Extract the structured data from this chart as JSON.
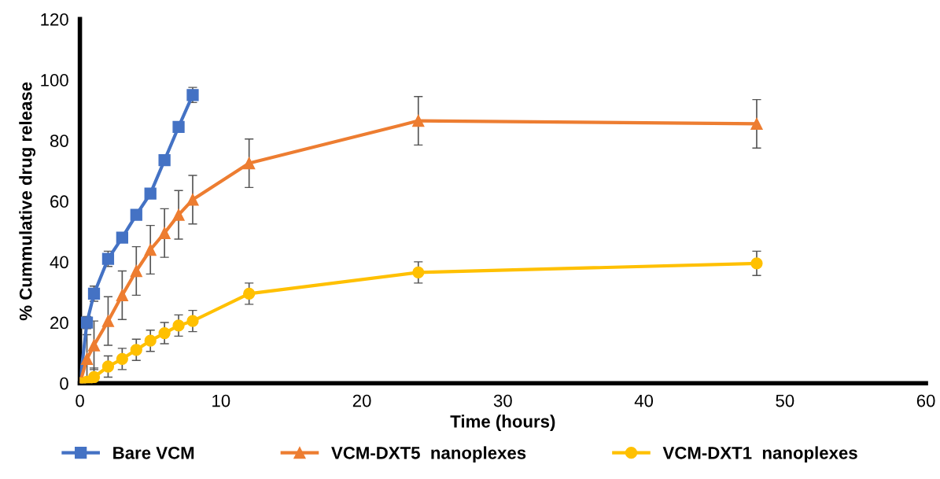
{
  "chart_data": {
    "type": "line",
    "xlabel": "Time (hours)",
    "ylabel": "% Cummulative drug release",
    "xlim": [
      0,
      60
    ],
    "xticks": [
      0,
      10,
      20,
      30,
      40,
      50,
      60
    ],
    "ylim": [
      0,
      120
    ],
    "yticks": [
      0,
      20,
      40,
      60,
      80,
      100,
      120
    ],
    "grid": false,
    "legend": "bottom",
    "series": [
      {
        "name": "Bare VCM",
        "color": "#4472c4",
        "marker": "square",
        "x": [
          0,
          0.5,
          1,
          2,
          3,
          4,
          5,
          6,
          7,
          8
        ],
        "values": [
          0,
          20,
          29.5,
          41,
          48,
          55.5,
          62.5,
          73.5,
          84.5,
          95
        ],
        "errors": [
          null,
          2,
          2.5,
          2.5,
          null,
          null,
          null,
          null,
          null,
          2.5
        ]
      },
      {
        "name": "VCM-DXT5  nanoplexes",
        "color": "#ed7d31",
        "marker": "triangle",
        "x": [
          0,
          0.5,
          1,
          2,
          3,
          4,
          5,
          6,
          7,
          8,
          12,
          24,
          48
        ],
        "values": [
          0,
          8,
          12.5,
          20.5,
          29,
          37,
          44,
          49.5,
          55.5,
          60.5,
          72.5,
          86.5,
          85.5
        ],
        "errors": [
          null,
          8,
          8,
          8,
          8,
          8,
          8,
          8,
          8,
          8,
          8,
          8,
          8
        ]
      },
      {
        "name": "VCM-DXT1  nanoplexes",
        "color": "#ffc000",
        "marker": "circle",
        "x": [
          0,
          0.5,
          1,
          2,
          3,
          4,
          5,
          6,
          7,
          8,
          12,
          24,
          48
        ],
        "values": [
          0,
          0.5,
          2,
          5.5,
          8,
          11,
          14,
          16.5,
          19,
          20.5,
          29.5,
          36.5,
          39.5
        ],
        "errors": [
          null,
          null,
          3,
          3.5,
          3.5,
          3.5,
          3.5,
          3.5,
          3.5,
          3.5,
          3.5,
          3.5,
          4
        ]
      }
    ]
  }
}
